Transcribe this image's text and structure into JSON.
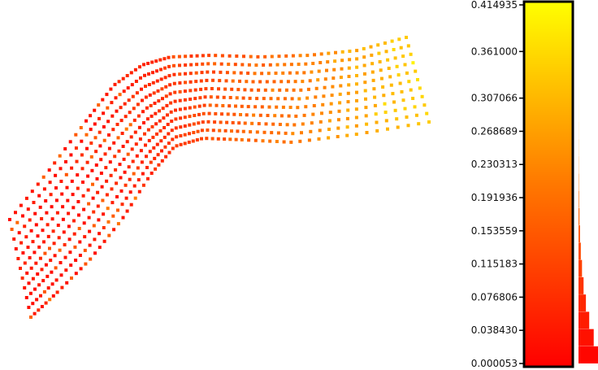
{
  "chart_data": {
    "type": "scatter",
    "title": "",
    "xlabel": "",
    "ylabel": "",
    "colormap": [
      "#ff0000",
      "#ff7800",
      "#ffff00"
    ],
    "scalar_range": [
      5.3e-05,
      0.414935
    ],
    "colorbar": {
      "ticks": [
        0.414935,
        0.361,
        0.307066,
        0.268689,
        0.230313,
        0.191936,
        0.153559,
        0.115183,
        0.076806,
        0.03843,
        5.3e-05
      ],
      "tick_labels": [
        "0.414935",
        "0.361000",
        "0.307066",
        "0.268689",
        "0.230313",
        "0.191936",
        "0.153559",
        "0.115183",
        "0.076806",
        "0.038430",
        "0.000053"
      ]
    },
    "histogram": {
      "bin_centers": [
        0.01,
        0.03,
        0.05,
        0.07,
        0.09,
        0.11,
        0.13,
        0.15,
        0.17,
        0.19,
        0.21,
        0.23,
        0.25,
        0.27,
        0.29,
        0.31,
        0.33,
        0.35,
        0.37,
        0.39,
        0.41
      ],
      "relative_counts": [
        1.0,
        0.78,
        0.55,
        0.38,
        0.26,
        0.18,
        0.12,
        0.08,
        0.05,
        0.03,
        0.02,
        0.012,
        0.008,
        0.005,
        0.003,
        0.002,
        0.001,
        0.001,
        0.0,
        0.0,
        0.0
      ]
    },
    "point_cloud": {
      "description_rows": 11,
      "grid": "strip of point rows",
      "scalar_trend": "higher values toward the right end of the strip"
    }
  }
}
